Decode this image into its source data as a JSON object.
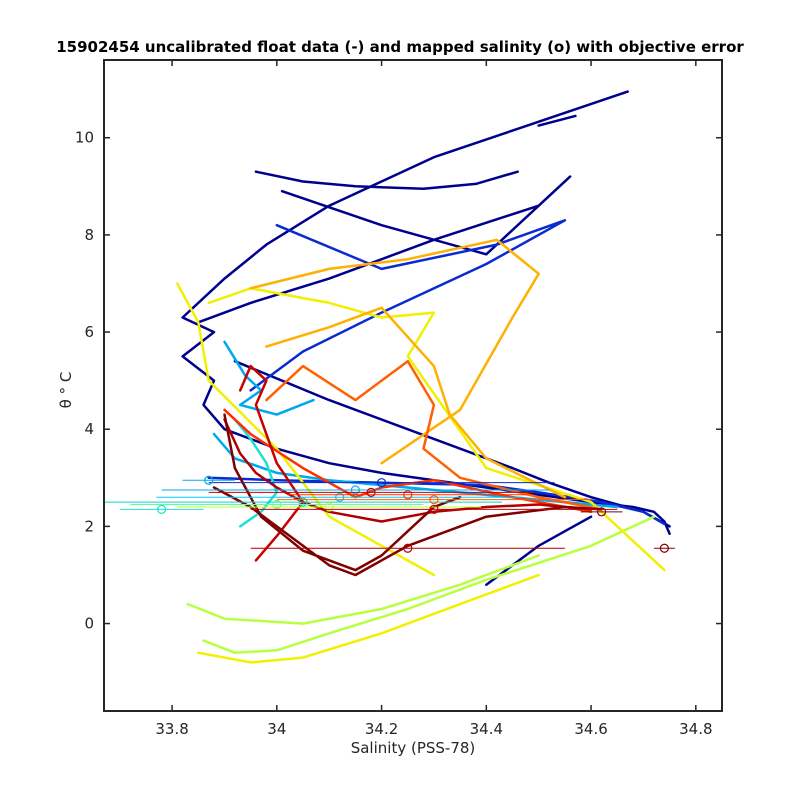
{
  "chart_data": {
    "type": "line",
    "title": "15902454 uncalibrated float data (-) and mapped salinity (o) with objective error",
    "xlabel": "Salinity (PSS-78)",
    "ylabel": "θ ° C",
    "xlim": [
      33.67,
      34.85
    ],
    "ylim": [
      -1.8,
      11.6
    ],
    "xticks": [
      33.8,
      34,
      34.2,
      34.4,
      34.6,
      34.8
    ],
    "xtick_labels": [
      "33.8",
      "34",
      "34.2",
      "34.4",
      "34.6",
      "34.8"
    ],
    "yticks": [
      0,
      2,
      4,
      6,
      8,
      10
    ],
    "ytick_labels": [
      "0",
      "2",
      "4",
      "6",
      "8",
      "10"
    ],
    "grid": false,
    "legend": "none",
    "colormap": "jet (profile index: blue = early profiles, dark red = late profiles)",
    "series": [
      {
        "color": "#00008f",
        "x": [
          34.67,
          34.3,
          34.1,
          33.98,
          33.9,
          33.82,
          33.88,
          33.82,
          33.88,
          33.86,
          33.9,
          34.0,
          34.1,
          34.2,
          34.3,
          34.4,
          34.5,
          34.6,
          34.68,
          34.72,
          34.74,
          34.75
        ],
        "y": [
          10.95,
          9.6,
          8.6,
          7.8,
          7.1,
          6.3,
          6.0,
          5.5,
          5.0,
          4.5,
          4.0,
          3.6,
          3.3,
          3.1,
          2.95,
          2.8,
          2.65,
          2.5,
          2.4,
          2.3,
          2.1,
          1.85
        ]
      },
      {
        "color": "#00008f",
        "x": [
          33.96,
          34.05,
          34.15,
          34.28,
          34.38,
          34.46
        ],
        "y": [
          9.3,
          9.1,
          9.0,
          8.95,
          9.05,
          9.3
        ]
      },
      {
        "color": "#00008f",
        "x": [
          34.5,
          34.57
        ],
        "y": [
          10.25,
          10.45
        ]
      },
      {
        "color": "#00008f",
        "x": [
          34.01,
          34.2,
          34.4,
          34.56,
          34.5,
          34.3,
          34.1,
          33.95,
          33.85
        ],
        "y": [
          8.9,
          8.2,
          7.6,
          9.2,
          8.6,
          7.9,
          7.1,
          6.6,
          6.2
        ]
      },
      {
        "color": "#00008f",
        "x": [
          33.92,
          34.1,
          34.3,
          34.45,
          34.52,
          34.6,
          34.7,
          34.75
        ],
        "y": [
          5.4,
          4.6,
          3.8,
          3.2,
          2.9,
          2.6,
          2.3,
          2.0
        ]
      },
      {
        "color": "#00008f",
        "x": [
          34.6,
          34.55,
          34.5,
          34.45,
          34.4
        ],
        "y": [
          2.2,
          1.9,
          1.6,
          1.2,
          0.8
        ]
      },
      {
        "color": "#0a2bd0",
        "x": [
          34.0,
          34.2,
          34.42,
          34.55,
          34.4,
          34.2,
          34.05,
          33.95
        ],
        "y": [
          8.2,
          7.3,
          7.8,
          8.3,
          7.4,
          6.4,
          5.6,
          4.8
        ]
      },
      {
        "color": "#0a2bd0",
        "x": [
          33.87,
          34.0,
          34.2,
          34.4,
          34.5,
          34.62,
          34.7,
          34.74
        ],
        "y": [
          3.0,
          2.95,
          2.9,
          2.85,
          2.7,
          2.5,
          2.3,
          2.05
        ]
      },
      {
        "color": "#00a8f0",
        "x": [
          33.9,
          33.94,
          33.97,
          33.93,
          34.0,
          34.07
        ],
        "y": [
          5.8,
          5.1,
          4.8,
          4.5,
          4.3,
          4.6
        ]
      },
      {
        "color": "#00a8f0",
        "x": [
          33.88,
          33.92,
          34.0,
          34.1,
          34.2,
          34.35,
          34.5,
          34.65
        ],
        "y": [
          3.9,
          3.4,
          3.1,
          2.95,
          2.85,
          2.7,
          2.55,
          2.4
        ]
      },
      {
        "color": "#1ee0d0",
        "x": [
          33.92,
          33.95,
          33.98,
          34.0,
          33.97,
          33.93
        ],
        "y": [
          4.2,
          3.8,
          3.3,
          2.7,
          2.3,
          2.0
        ]
      },
      {
        "color": "#b8ff40",
        "x": [
          33.86,
          33.92,
          34.0,
          34.1,
          34.25,
          34.4,
          34.6,
          34.72
        ],
        "y": [
          -0.35,
          -0.6,
          -0.55,
          -0.2,
          0.3,
          0.9,
          1.6,
          2.2
        ]
      },
      {
        "color": "#b8ff40",
        "x": [
          33.83,
          33.9,
          34.05,
          34.2,
          34.35,
          34.5
        ],
        "y": [
          0.4,
          0.1,
          0.0,
          0.3,
          0.8,
          1.4
        ]
      },
      {
        "color": "#f0f000",
        "x": [
          33.81,
          33.85,
          33.87,
          34.0,
          34.1,
          34.3
        ],
        "y": [
          7.0,
          6.2,
          5.0,
          3.6,
          2.2,
          1.0
        ]
      },
      {
        "color": "#f0f000",
        "x": [
          33.87,
          33.95,
          34.1,
          34.2,
          34.3,
          34.25,
          34.4,
          34.6,
          34.74
        ],
        "y": [
          6.6,
          6.9,
          6.6,
          6.3,
          6.4,
          5.5,
          3.2,
          2.5,
          1.1
        ]
      },
      {
        "color": "#f0f000",
        "x": [
          33.85,
          33.95,
          34.05,
          34.2,
          34.35,
          34.5
        ],
        "y": [
          -0.6,
          -0.8,
          -0.7,
          -0.2,
          0.4,
          1.0
        ]
      },
      {
        "color": "#ffb000",
        "x": [
          33.95,
          34.1,
          34.25,
          34.42,
          34.5,
          34.45,
          34.35,
          34.2
        ],
        "y": [
          6.9,
          7.3,
          7.5,
          7.9,
          7.2,
          6.3,
          4.4,
          3.3
        ]
      },
      {
        "color": "#ffb000",
        "x": [
          33.98,
          34.1,
          34.2,
          34.3,
          34.33,
          34.4,
          34.55
        ],
        "y": [
          5.7,
          6.1,
          6.5,
          5.3,
          4.3,
          3.4,
          2.6
        ]
      },
      {
        "color": "#ff6000",
        "x": [
          33.98,
          34.05,
          34.15,
          34.25,
          34.3,
          34.28,
          34.35,
          34.5,
          34.62
        ],
        "y": [
          4.6,
          5.3,
          4.6,
          5.4,
          4.5,
          3.6,
          3.0,
          2.6,
          2.35
        ]
      },
      {
        "color": "#ff3000",
        "x": [
          33.9,
          33.95,
          34.05,
          34.15,
          34.2,
          34.3,
          34.45,
          34.6
        ],
        "y": [
          4.4,
          3.9,
          3.2,
          2.6,
          2.8,
          2.95,
          2.6,
          2.3
        ]
      },
      {
        "color": "#c80000",
        "x": [
          33.93,
          33.95,
          33.98,
          33.96,
          34.0,
          34.05,
          34.0,
          33.96
        ],
        "y": [
          4.8,
          5.3,
          5.0,
          4.5,
          3.3,
          2.5,
          1.8,
          1.3
        ]
      },
      {
        "color": "#b00000",
        "x": [
          33.9,
          33.93,
          33.96,
          34.0,
          34.05,
          34.1,
          34.2,
          34.3,
          34.4,
          34.5,
          34.6
        ],
        "y": [
          4.2,
          3.5,
          3.1,
          2.8,
          2.5,
          2.3,
          2.1,
          2.3,
          2.4,
          2.45,
          2.35
        ]
      },
      {
        "color": "#800000",
        "x": [
          33.9,
          33.92,
          33.97,
          34.05,
          34.15,
          34.2,
          34.25,
          34.3,
          34.35
        ],
        "y": [
          4.3,
          3.2,
          2.2,
          1.5,
          1.1,
          1.4,
          1.9,
          2.4,
          2.6
        ]
      },
      {
        "color": "#800000",
        "x": [
          33.88,
          33.95,
          34.0,
          34.05,
          34.1,
          34.15,
          34.25,
          34.4,
          34.55,
          34.62
        ],
        "y": [
          2.8,
          2.4,
          2.0,
          1.6,
          1.2,
          1.0,
          1.6,
          2.2,
          2.4,
          2.35
        ]
      }
    ],
    "mapped_salinity_markers": [
      {
        "x": 34.2,
        "y": 2.9,
        "err": 0.33,
        "color": "#0a2bd0"
      },
      {
        "x": 34.15,
        "y": 2.75,
        "err": 0.37,
        "color": "#00a8f0"
      },
      {
        "x": 34.12,
        "y": 2.6,
        "err": 0.35,
        "color": "#00c8ff"
      },
      {
        "x": 34.05,
        "y": 2.5,
        "err": 0.38,
        "color": "#00d8c8"
      },
      {
        "x": 34.0,
        "y": 2.45,
        "err": 0.28,
        "color": "#60ff90"
      },
      {
        "x": 34.1,
        "y": 2.4,
        "err": 0.29,
        "color": "#b8ff40"
      },
      {
        "x": 34.3,
        "y": 2.55,
        "err": 0.3,
        "color": "#ff6000"
      },
      {
        "x": 34.25,
        "y": 2.65,
        "err": 0.23,
        "color": "#ff3000"
      },
      {
        "x": 34.18,
        "y": 2.7,
        "err": 0.31,
        "color": "#c80000"
      },
      {
        "x": 34.3,
        "y": 2.35,
        "err": 0.35,
        "color": "#c80000"
      },
      {
        "x": 34.25,
        "y": 1.55,
        "err": 0.3,
        "color": "#b00000"
      },
      {
        "x": 34.62,
        "y": 2.3,
        "err": 0.04,
        "color": "#800000"
      },
      {
        "x": 34.74,
        "y": 1.55,
        "err": 0.02,
        "color": "#800000"
      },
      {
        "x": 33.78,
        "y": 2.35,
        "err": 0.08,
        "color": "#1ee0d0"
      },
      {
        "x": 33.87,
        "y": 2.95,
        "err": 0.05,
        "color": "#00a8f0"
      }
    ]
  }
}
